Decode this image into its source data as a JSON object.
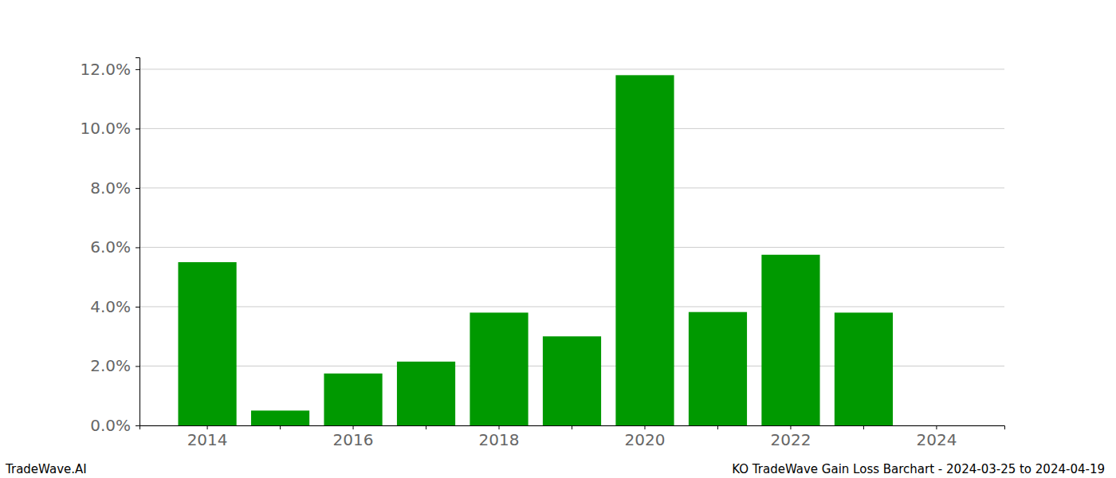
{
  "chart_data": {
    "type": "bar",
    "title": "KO TradeWave Gain Loss Barchart - 2024-03-25 to 2024-04-19",
    "annotations": [
      "TradeWave.AI"
    ],
    "categories": [
      "2014",
      null,
      "2016",
      null,
      "2018",
      null,
      "2020",
      null,
      "2022",
      null,
      "2024"
    ],
    "values": [
      5.5,
      0.5,
      1.75,
      2.15,
      3.8,
      3.0,
      11.8,
      3.82,
      5.75,
      3.8,
      null
    ],
    "color": "#009900",
    "ylim": [
      0,
      12.4
    ],
    "yticks": [
      {
        "value": 0,
        "label": "0.0%"
      },
      {
        "value": 2,
        "label": "2.0%"
      },
      {
        "value": 4,
        "label": "4.0%"
      },
      {
        "value": 6,
        "label": "6.0%"
      },
      {
        "value": 8,
        "label": "8.0%"
      },
      {
        "value": 10,
        "label": "10.0%"
      },
      {
        "value": 12,
        "label": "12.0%"
      }
    ],
    "grid": true
  }
}
